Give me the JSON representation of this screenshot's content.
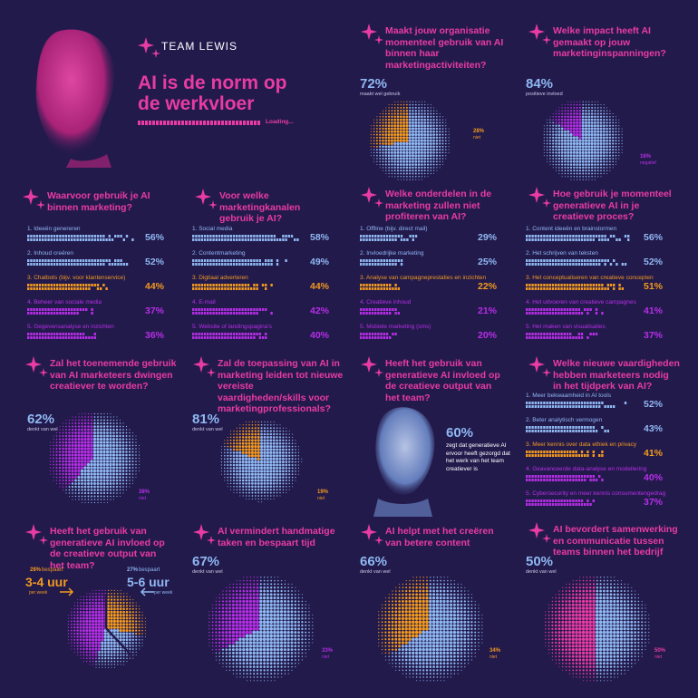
{
  "brand": {
    "logo_text": "TEAM LEWIS"
  },
  "header": {
    "title_line1": "AI is de norm op",
    "title_line2": "de werkvloer",
    "loading": "Loading..."
  },
  "colors": {
    "bg": "#231a4c",
    "blue": "#8fb8f2",
    "orange": "#f29a1e",
    "magenta": "#b62ee6",
    "pink": "#e83ba4"
  },
  "chart_data": [
    {
      "id": "pie1",
      "type": "pie",
      "title": "Maakt jouw organisatie momenteel gebruik van AI binnen haar marketingactiviteiten?",
      "slices": [
        {
          "label": "maakt wel gebruik",
          "value": 72,
          "color": "#8fb8f2"
        },
        {
          "label": "niet",
          "value": 28,
          "color": "#f29a1e"
        }
      ]
    },
    {
      "id": "pie2",
      "type": "pie",
      "title": "Welke impact heeft AI gemaakt op jouw marketinginspanningen?",
      "slices": [
        {
          "label": "positieve invloed",
          "value": 84,
          "color": "#8fb8f2"
        },
        {
          "label": "negatief",
          "value": 16,
          "color": "#b62ee6"
        }
      ]
    },
    {
      "id": "bars1",
      "type": "bar",
      "title": "Waarvoor gebruik je AI binnen marketing?",
      "categories": [
        "1. Ideeën genereren",
        "2. Inhoud creëren",
        "3. Chatbots (bijv. voor klantenservice)",
        "4. Beheer van sociale media",
        "5. Gegevensanalyse en inzichten"
      ],
      "values": [
        56,
        52,
        44,
        37,
        36
      ]
    },
    {
      "id": "bars2",
      "type": "bar",
      "title": "Voor welke marketingkanalen gebruik je AI?",
      "categories": [
        "1. Social media",
        "2. Contentmarketing",
        "3. Digitaal adverteren",
        "4. E-mail",
        "5. Website of landingspagina's"
      ],
      "values": [
        58,
        49,
        44,
        42,
        40
      ]
    },
    {
      "id": "bars3",
      "type": "bar",
      "title": "Welke onderdelen in de marketing zullen niet profiteren van AI?",
      "categories": [
        "1. Offline (bijv. direct mail)",
        "2. Invloedrijke marketing",
        "3. Analyse van campagneprestaties en inzichten",
        "4. Creatieve inhoud",
        "5. Mobiele marketing (sms)"
      ],
      "values": [
        29,
        25,
        22,
        21,
        20
      ]
    },
    {
      "id": "bars4",
      "type": "bar",
      "title": "Hoe gebruik je momenteel generatieve AI in je creatieve proces?",
      "categories": [
        "1. Content ideeën en brainstormen",
        "2. Het schrijven van teksten",
        "3. Het conceptualiseren van creatieve concepten",
        "4. Het uitvoeren van creatieve campagnes",
        "5. Het maken van visualisaties"
      ],
      "values": [
        56,
        52,
        51,
        41,
        37
      ]
    },
    {
      "id": "pie3",
      "type": "pie",
      "title": "Zal het toenemende gebruik van AI marketeers dwingen creatiever te worden?",
      "slices": [
        {
          "label": "denkt van wel",
          "value": 62,
          "color": "#8fb8f2"
        },
        {
          "label": "niet",
          "value": 38,
          "color": "#b62ee6"
        }
      ]
    },
    {
      "id": "pie4",
      "type": "pie",
      "title": "Zal de toepassing van AI in marketing leiden tot nieuwe vereiste vaardigheden/skills voor marketingprofessionals?",
      "slices": [
        {
          "label": "denkt van wel",
          "value": 81,
          "color": "#8fb8f2"
        },
        {
          "label": "niet",
          "value": 19,
          "color": "#f29a1e"
        }
      ]
    },
    {
      "id": "stat1",
      "type": "table",
      "title": "Heeft het gebruik van generatieve AI invloed op de creatieve output van het team?",
      "value": "60%",
      "text": "zegt dat generatieve AI ervoor heeft gezorgd dat het werk van het team creatiever is"
    },
    {
      "id": "bars5",
      "type": "bar",
      "title": "Welke nieuwe vaardigheden hebben marketeers nodig in het tijdperk van AI?",
      "categories": [
        "1. Meer bekwaamheid in AI tools",
        "2. Beter analytisch vermogen",
        "3. Meer kennis over data ethiek en privacy",
        "4. Geavanceerde data-analyse en modellering",
        "5. Cybersecurity en meer kennis consumentengedrag"
      ],
      "values": [
        52,
        43,
        41,
        40,
        37
      ]
    },
    {
      "id": "clock",
      "type": "pie",
      "title": "Heeft het gebruik van generatieve AI invloed op de creatieve output van het team?",
      "left": {
        "pct": "28%",
        "pct_label": "bespaart",
        "hours": "3-4 uur",
        "unit": "per week"
      },
      "right": {
        "pct": "27%",
        "pct_label": "bespaart",
        "hours": "5-6 uur",
        "unit": "per week"
      },
      "slices": [
        {
          "value": 28,
          "color": "#f29a1e"
        },
        {
          "value": 27,
          "color": "#8fb8f2"
        },
        {
          "value": 45,
          "color": "#b62ee6"
        }
      ]
    },
    {
      "id": "pie5",
      "type": "pie",
      "title": "AI vermindert handmatige taken en bespaart tijd",
      "slices": [
        {
          "label": "denkt van wel",
          "value": 67,
          "color": "#8fb8f2"
        },
        {
          "label": "niet",
          "value": 33,
          "color": "#b62ee6"
        }
      ]
    },
    {
      "id": "pie6",
      "type": "pie",
      "title": "AI helpt met het creëren van betere content",
      "slices": [
        {
          "label": "denkt van wel",
          "value": 66,
          "color": "#8fb8f2"
        },
        {
          "label": "niet",
          "value": 34,
          "color": "#f29a1e"
        }
      ]
    },
    {
      "id": "pie7",
      "type": "pie",
      "title": "AI bevordert samenwerking en communicatie tussen teams binnen het bedrijf",
      "slices": [
        {
          "label": "denkt van wel",
          "value": 50,
          "color": "#8fb8f2"
        },
        {
          "label": "niet",
          "value": 50,
          "color": "#e83ba4"
        }
      ]
    }
  ]
}
